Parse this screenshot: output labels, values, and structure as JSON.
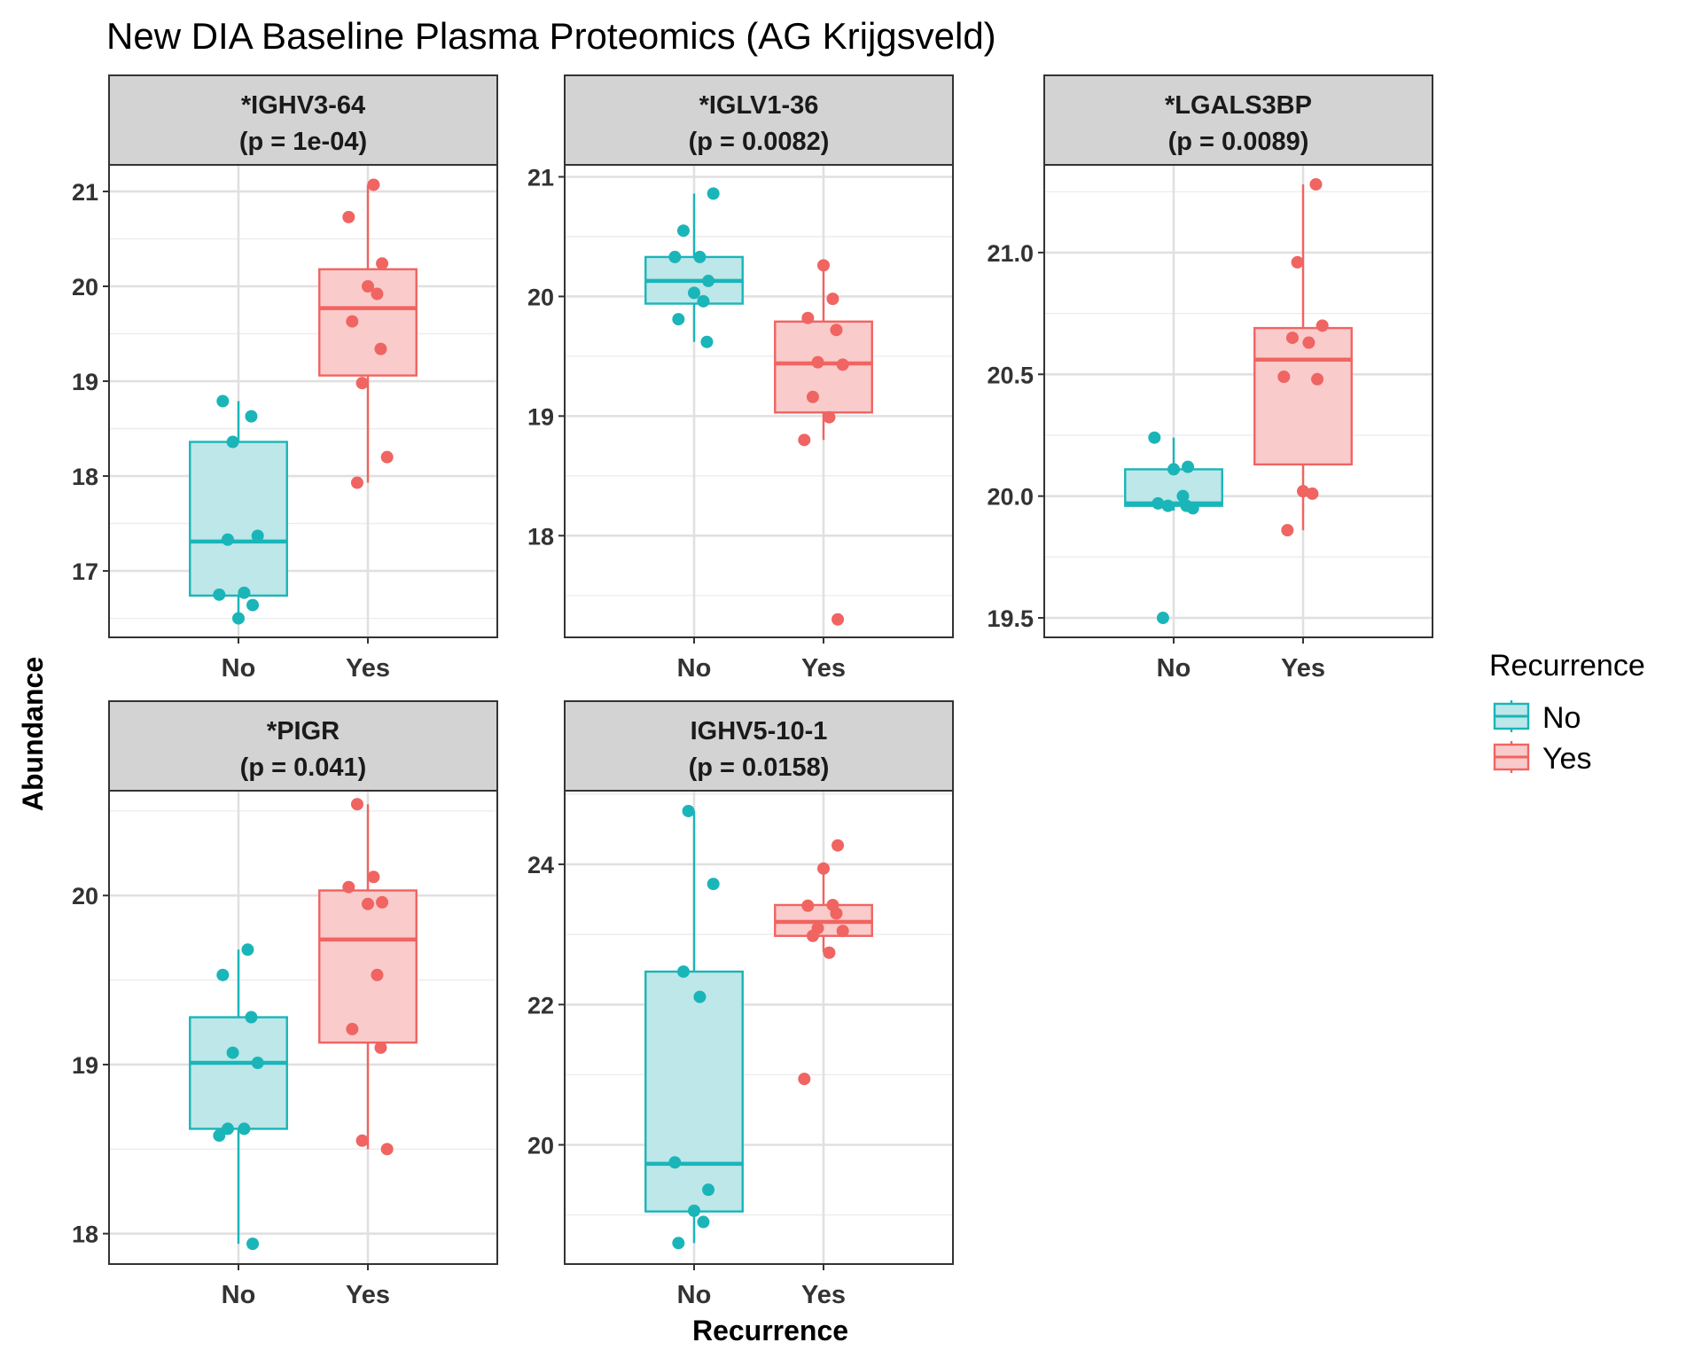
{
  "title": "New DIA Baseline Plasma Proteomics (AG Krijgsveld)",
  "ylabel": "Abundance",
  "xlabel": "Recurrence",
  "legend": {
    "title": "Recurrence",
    "items": [
      {
        "label": "No",
        "color": "#1AB5B8",
        "fill": "#BDE7E9"
      },
      {
        "label": "Yes",
        "color": "#F06461",
        "fill": "#F9CBCB"
      }
    ],
    "placement": "right"
  },
  "chart_data": [
    {
      "type": "boxplot",
      "title": "*IGHV3-64",
      "subtitle": "(p = 1e-04)",
      "categories": [
        "No",
        "Yes"
      ],
      "ylim": [
        16.3,
        21.28
      ],
      "yticks": [
        "17",
        "18",
        "19",
        "20",
        "21"
      ],
      "boxes": [
        {
          "group": "No",
          "lower": 16.5,
          "q1": 16.74,
          "median": 17.31,
          "q3": 18.36,
          "upper": 18.79
        },
        {
          "group": "Yes",
          "lower": 17.93,
          "q1": 19.06,
          "median": 19.77,
          "q3": 20.18,
          "upper": 21.07
        }
      ],
      "points": [
        {
          "group": "No",
          "values": [
            18.79,
            18.63,
            18.36,
            17.37,
            17.33,
            16.77,
            16.75,
            16.64,
            16.5
          ]
        },
        {
          "group": "Yes",
          "values": [
            21.07,
            20.73,
            20.24,
            20.0,
            19.92,
            19.63,
            19.34,
            18.98,
            18.2,
            17.93
          ]
        }
      ]
    },
    {
      "type": "boxplot",
      "title": "*IGLV1-36",
      "subtitle": "(p = 0.0082)",
      "categories": [
        "No",
        "Yes"
      ],
      "ylim": [
        17.15,
        21.1
      ],
      "yticks": [
        "18",
        "19",
        "20",
        "21"
      ],
      "boxes": [
        {
          "group": "No",
          "lower": 19.62,
          "q1": 19.94,
          "median": 20.13,
          "q3": 20.33,
          "upper": 20.86
        },
        {
          "group": "Yes",
          "lower": 18.8,
          "q1": 19.03,
          "median": 19.44,
          "q3": 19.79,
          "upper": 20.26
        }
      ],
      "points": [
        {
          "group": "No",
          "values": [
            20.86,
            20.55,
            20.33,
            20.33,
            20.13,
            20.03,
            19.96,
            19.81,
            19.62
          ]
        },
        {
          "group": "Yes",
          "values": [
            20.26,
            19.98,
            19.82,
            19.72,
            19.45,
            19.43,
            19.16,
            18.99,
            18.8,
            17.3
          ]
        }
      ]
    },
    {
      "type": "boxplot",
      "title": "*LGALS3BP",
      "subtitle": "(p = 0.0089)",
      "categories": [
        "No",
        "Yes"
      ],
      "ylim": [
        19.42,
        21.36
      ],
      "yticks": [
        "19.5",
        "20.0",
        "20.5",
        "21.0"
      ],
      "boxes": [
        {
          "group": "No",
          "lower": 19.94,
          "q1": 19.96,
          "median": 19.97,
          "q3": 20.11,
          "upper": 20.24
        },
        {
          "group": "Yes",
          "lower": 19.86,
          "q1": 20.13,
          "median": 20.56,
          "q3": 20.69,
          "upper": 21.28
        }
      ],
      "points": [
        {
          "group": "No",
          "values": [
            20.24,
            20.12,
            20.11,
            20.0,
            19.97,
            19.96,
            19.96,
            19.95,
            19.5
          ]
        },
        {
          "group": "Yes",
          "values": [
            21.28,
            20.96,
            20.7,
            20.65,
            20.63,
            20.49,
            20.48,
            20.02,
            20.01,
            19.86
          ]
        }
      ]
    },
    {
      "type": "boxplot",
      "title": "*PIGR",
      "subtitle": "(p = 0.041)",
      "categories": [
        "No",
        "Yes"
      ],
      "ylim": [
        17.82,
        20.62
      ],
      "yticks": [
        "18",
        "19",
        "20"
      ],
      "boxes": [
        {
          "group": "No",
          "lower": 17.94,
          "q1": 18.62,
          "median": 19.01,
          "q3": 19.28,
          "upper": 19.68
        },
        {
          "group": "Yes",
          "lower": 18.5,
          "q1": 19.13,
          "median": 19.74,
          "q3": 20.03,
          "upper": 20.54
        }
      ],
      "points": [
        {
          "group": "No",
          "values": [
            19.68,
            19.53,
            19.28,
            19.07,
            19.01,
            18.62,
            18.62,
            18.58,
            17.94
          ]
        },
        {
          "group": "Yes",
          "values": [
            20.54,
            20.11,
            20.05,
            19.96,
            19.95,
            19.53,
            19.21,
            19.1,
            18.55,
            18.5
          ]
        }
      ]
    },
    {
      "type": "boxplot",
      "title": "IGHV5-10-1",
      "subtitle": "(p = 0.0158)",
      "categories": [
        "No",
        "Yes"
      ],
      "ylim": [
        18.3,
        25.05
      ],
      "yticks": [
        "20",
        "22",
        "24"
      ],
      "boxes": [
        {
          "group": "No",
          "lower": 18.6,
          "q1": 19.05,
          "median": 19.73,
          "q3": 22.47,
          "upper": 24.76
        },
        {
          "group": "Yes",
          "lower": 22.75,
          "q1": 22.98,
          "median": 23.18,
          "q3": 23.42,
          "upper": 23.94
        }
      ],
      "points": [
        {
          "group": "No",
          "values": [
            24.76,
            23.72,
            22.47,
            22.11,
            19.75,
            19.36,
            19.06,
            18.9,
            18.6
          ]
        },
        {
          "group": "Yes",
          "values": [
            24.27,
            23.94,
            23.42,
            23.41,
            23.3,
            23.09,
            23.05,
            22.98,
            22.74,
            20.94
          ]
        }
      ]
    }
  ]
}
